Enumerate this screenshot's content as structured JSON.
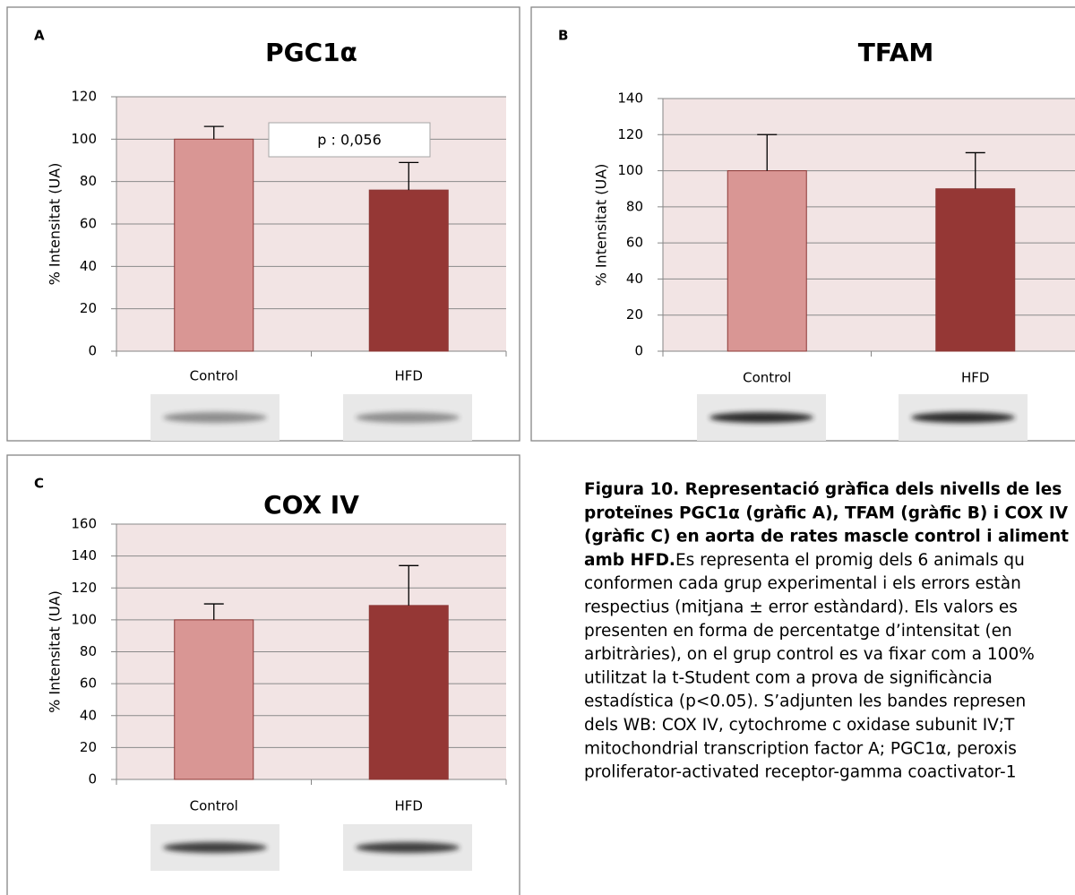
{
  "chart_data": [
    {
      "type": "bar",
      "panel": "A",
      "title": "PGC1α",
      "y_label": "% Intensitat (UA)",
      "categories": [
        "Control",
        "HFD"
      ],
      "values": [
        100,
        76
      ],
      "errors": [
        6,
        13
      ],
      "colors": [
        "#d99694",
        "#953735"
      ],
      "ylim": [
        0,
        120
      ],
      "yticks": [
        0,
        20,
        40,
        60,
        80,
        100,
        120
      ],
      "grid": true,
      "annotation": "p : 0,056"
    },
    {
      "type": "bar",
      "panel": "B",
      "title": "TFAM",
      "y_label": "% Intensitat (UA)",
      "categories": [
        "Control",
        "HFD"
      ],
      "values": [
        100,
        90
      ],
      "errors": [
        20,
        20
      ],
      "colors": [
        "#d99694",
        "#953735"
      ],
      "ylim": [
        0,
        140
      ],
      "yticks": [
        0,
        20,
        40,
        60,
        80,
        100,
        120,
        140
      ],
      "grid": true
    },
    {
      "type": "bar",
      "panel": "C",
      "title": "COX IV",
      "y_label": "% Intensitat (UA)",
      "categories": [
        "Control",
        "HFD"
      ],
      "values": [
        100,
        109
      ],
      "errors": [
        10,
        25
      ],
      "colors": [
        "#d99694",
        "#953735"
      ],
      "ylim": [
        0,
        160
      ],
      "yticks": [
        0,
        20,
        40,
        60,
        80,
        100,
        120,
        140,
        160
      ],
      "grid": true
    }
  ],
  "caption": {
    "heading": [
      "Figura 10. Representació gràfica dels nivells de les",
      "proteïnes PGC1α (gràfic A), TFAM (gràfic B) i COX IV",
      "(gràfic C) en aorta de rates mascle control i aliment",
      "amb HFD."
    ],
    "text": [
      " Es representa el promig dels 6 animals qu",
      "conformen cada grup experimental i els errors estàn",
      "respectius (mitjana ± error estàndard). Els valors es",
      "presenten en forma de percentatge d’intensitat (en",
      "arbitràries), on el grup control es va fixar com a 100%",
      "utilitzat la t-Student com a prova de significància",
      "estadística (p<0.05). S’adjunten les bandes represen",
      "dels WB: COX IV, cytochrome c oxidase subunit  IV;T",
      "mitochondrial transcription factor A; PGC1α, peroxis",
      "proliferator-activated receptor-gamma coactivator-1"
    ]
  }
}
